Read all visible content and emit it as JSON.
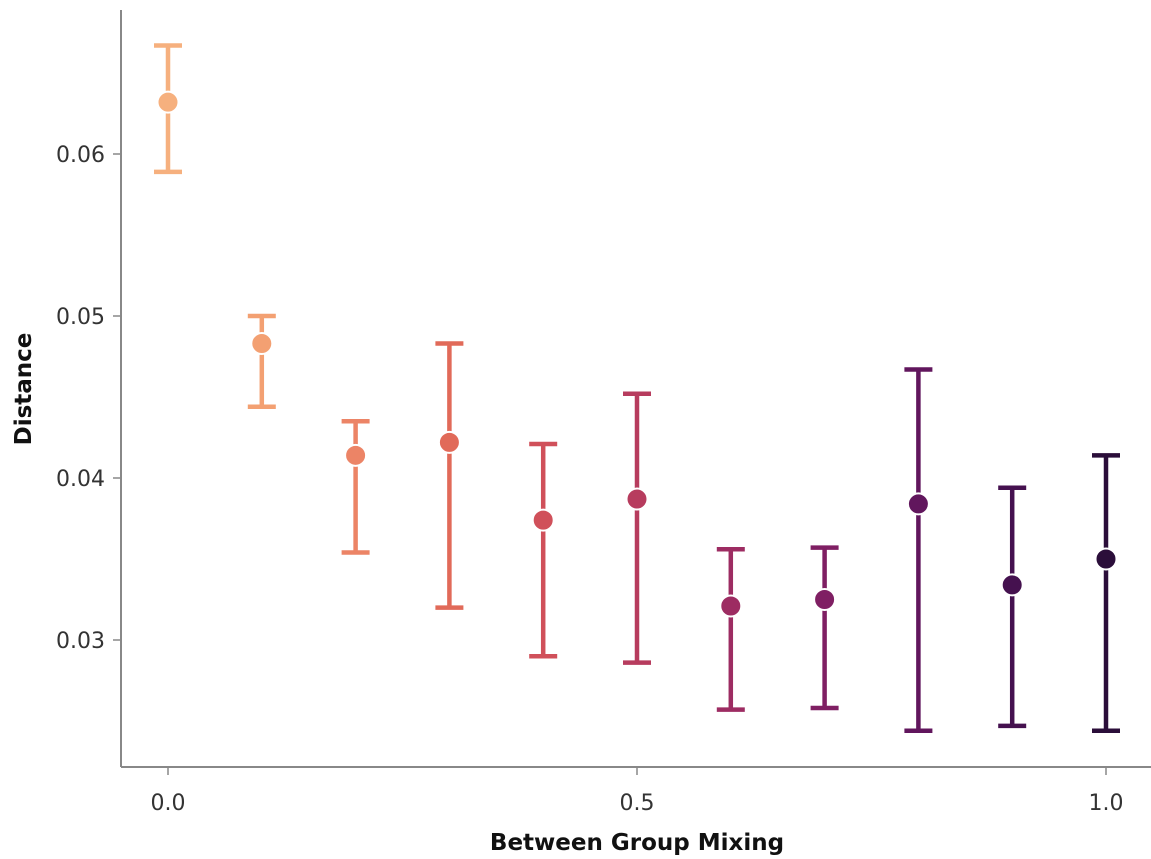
{
  "chart_data": {
    "type": "scatter",
    "title": "",
    "xlabel": "Between Group Mixing",
    "ylabel": "Distance",
    "xlim": [
      -0.05,
      1.05
    ],
    "ylim": [
      0.0232,
      0.0695
    ],
    "xticks": [
      0.0,
      0.5,
      1.0
    ],
    "xtick_labels": [
      "0.0",
      "0.5",
      "1.0"
    ],
    "yticks": [
      0.03,
      0.04,
      0.05,
      0.06
    ],
    "ytick_labels": [
      "0.03",
      "0.04",
      "0.05",
      "0.06"
    ],
    "grid": false,
    "legend": "none",
    "points": [
      {
        "x": 0.0,
        "y": 0.0632,
        "ylow": 0.0589,
        "yhigh": 0.0667,
        "color": "#F6B07E"
      },
      {
        "x": 0.1,
        "y": 0.0483,
        "ylow": 0.0444,
        "yhigh": 0.05,
        "color": "#F3A072"
      },
      {
        "x": 0.2,
        "y": 0.0414,
        "ylow": 0.0354,
        "yhigh": 0.0435,
        "color": "#EC8466"
      },
      {
        "x": 0.3,
        "y": 0.0422,
        "ylow": 0.032,
        "yhigh": 0.0483,
        "color": "#E16A59"
      },
      {
        "x": 0.4,
        "y": 0.0374,
        "ylow": 0.029,
        "yhigh": 0.0421,
        "color": "#D0505A"
      },
      {
        "x": 0.5,
        "y": 0.0387,
        "ylow": 0.0286,
        "yhigh": 0.0452,
        "color": "#B73C5E"
      },
      {
        "x": 0.6,
        "y": 0.0321,
        "ylow": 0.0257,
        "yhigh": 0.0356,
        "color": "#9D2C62"
      },
      {
        "x": 0.7,
        "y": 0.0325,
        "ylow": 0.0258,
        "yhigh": 0.0357,
        "color": "#7F1F63"
      },
      {
        "x": 0.8,
        "y": 0.0384,
        "ylow": 0.0244,
        "yhigh": 0.0467,
        "color": "#61165D"
      },
      {
        "x": 0.9,
        "y": 0.0334,
        "ylow": 0.0247,
        "yhigh": 0.0394,
        "color": "#45114F"
      },
      {
        "x": 1.0,
        "y": 0.035,
        "ylow": 0.0244,
        "yhigh": 0.0414,
        "color": "#2B0E3A"
      }
    ]
  }
}
